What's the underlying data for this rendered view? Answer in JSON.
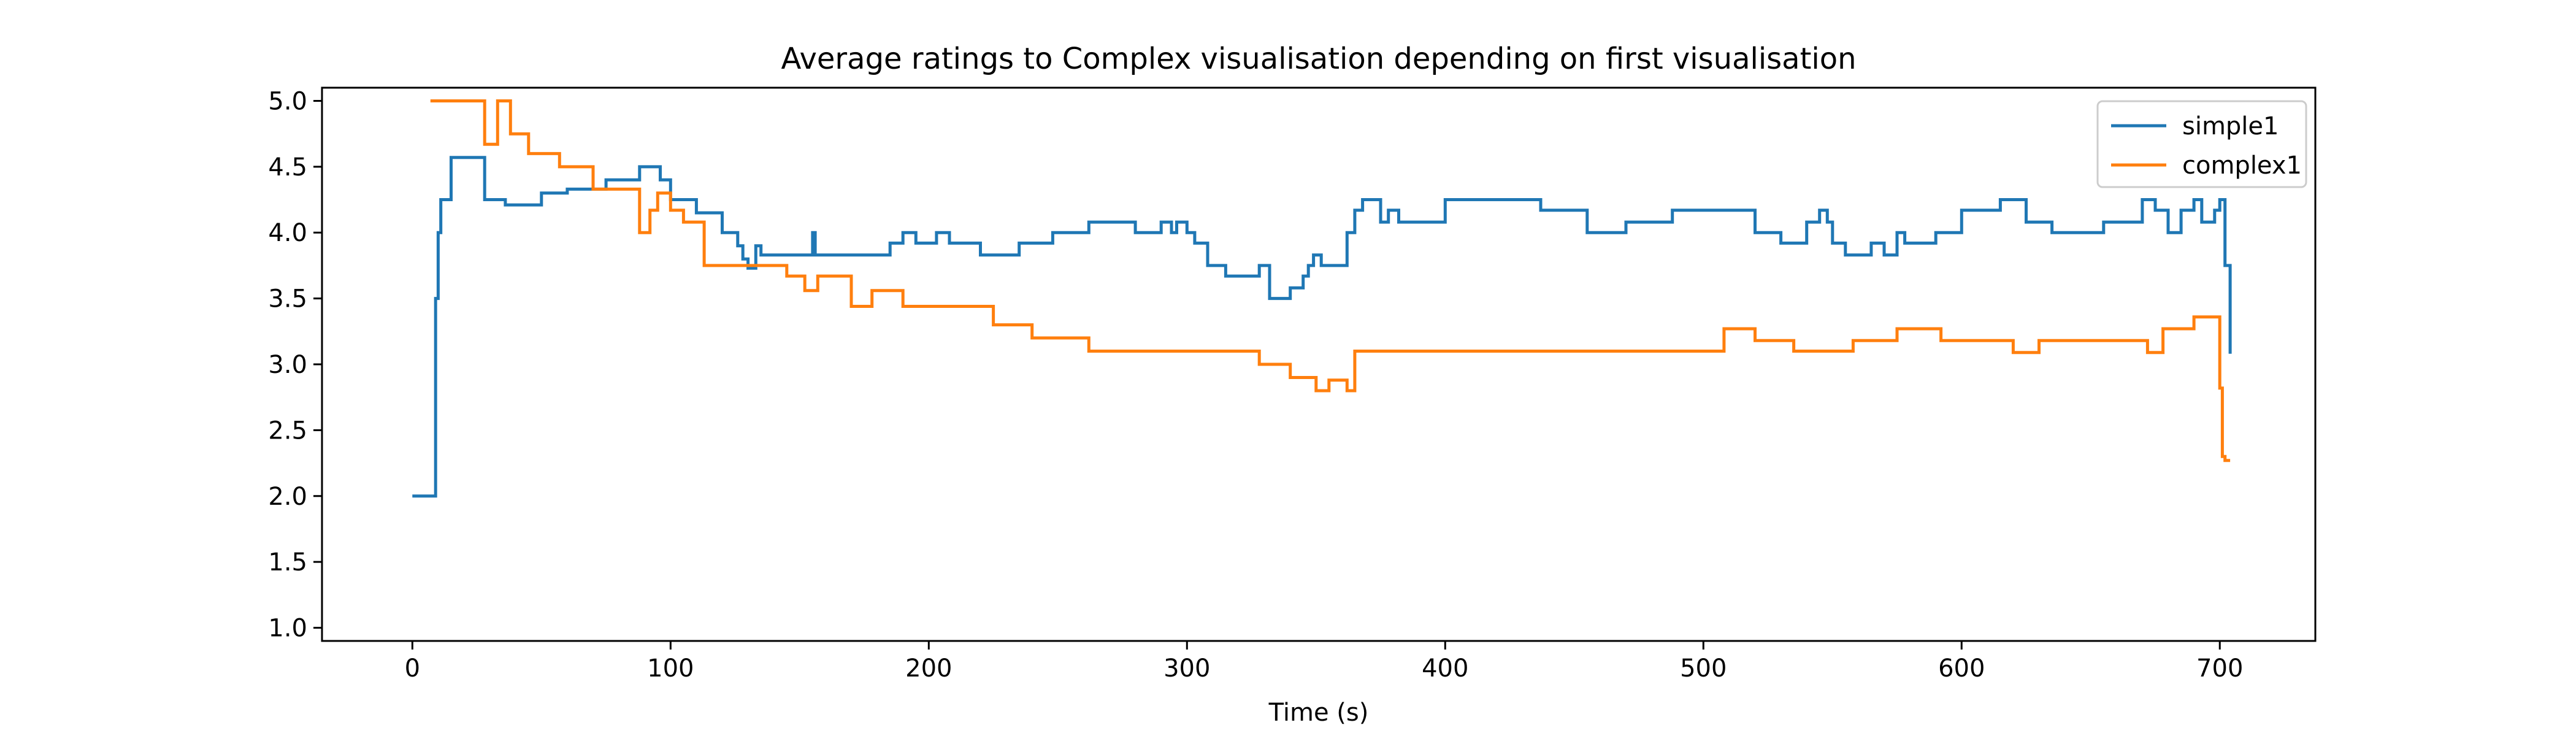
{
  "chart_data": {
    "type": "line",
    "title": "Average ratings to Complex visualisation depending on first visualisation",
    "xlabel": "Time (s)",
    "ylabel": "",
    "xlim": [
      -35,
      737
    ],
    "ylim": [
      0.9,
      5.1
    ],
    "x_ticks": [
      0,
      100,
      200,
      300,
      400,
      500,
      600,
      700
    ],
    "y_ticks": [
      1.0,
      1.5,
      2.0,
      2.5,
      3.0,
      3.5,
      4.0,
      4.5,
      5.0
    ],
    "grid": false,
    "legend_position": "top-right",
    "step": "post",
    "series": [
      {
        "name": "simple1",
        "color": "#1f77b4",
        "x": [
          0,
          9,
          10,
          11,
          12,
          15,
          20,
          28,
          36,
          50,
          60,
          75,
          88,
          96,
          100,
          110,
          120,
          126,
          128,
          130,
          133,
          135,
          155,
          156,
          158,
          170,
          182,
          185,
          190,
          195,
          200,
          203,
          208,
          220,
          235,
          248,
          262,
          270,
          280,
          290,
          294,
          296,
          300,
          303,
          308,
          315,
          325,
          328,
          332,
          336,
          340,
          345,
          347,
          349,
          352,
          360,
          362,
          365,
          368,
          375,
          378,
          382,
          385,
          400,
          420,
          437,
          455,
          470,
          488,
          510,
          520,
          530,
          540,
          545,
          548,
          550,
          555,
          565,
          570,
          575,
          578,
          590,
          600,
          615,
          625,
          635,
          655,
          670,
          675,
          680,
          685,
          690,
          693,
          698,
          700,
          702,
          704
        ],
        "values": [
          2.0,
          3.5,
          4.0,
          4.25,
          4.25,
          4.57,
          4.57,
          4.25,
          4.21,
          4.3,
          4.33,
          4.4,
          4.5,
          4.4,
          4.25,
          4.15,
          4.0,
          3.9,
          3.8,
          3.73,
          3.9,
          3.83,
          4.0,
          3.83,
          3.83,
          3.83,
          3.83,
          3.92,
          4.0,
          3.92,
          3.92,
          4.0,
          3.92,
          3.83,
          3.92,
          4.0,
          4.08,
          4.08,
          4.0,
          4.08,
          4.0,
          4.08,
          4.0,
          3.92,
          3.75,
          3.67,
          3.67,
          3.75,
          3.5,
          3.5,
          3.58,
          3.67,
          3.75,
          3.83,
          3.75,
          3.75,
          4.0,
          4.17,
          4.25,
          4.08,
          4.17,
          4.08,
          4.08,
          4.25,
          4.25,
          4.17,
          4.0,
          4.08,
          4.17,
          4.17,
          4.0,
          3.92,
          4.08,
          4.17,
          4.08,
          3.92,
          3.83,
          3.92,
          3.83,
          4.0,
          3.92,
          4.0,
          4.17,
          4.25,
          4.08,
          4.0,
          4.08,
          4.25,
          4.17,
          4.0,
          4.17,
          4.25,
          4.08,
          4.17,
          4.25,
          3.75,
          3.08
        ]
      },
      {
        "name": "complex1",
        "color": "#ff7f0e",
        "x": [
          7,
          28,
          33,
          38,
          45,
          57,
          70,
          86,
          88,
          92,
          95,
          100,
          105,
          113,
          145,
          152,
          157,
          170,
          178,
          190,
          220,
          225,
          240,
          262,
          300,
          328,
          340,
          350,
          355,
          362,
          365,
          500,
          508,
          520,
          535,
          558,
          575,
          592,
          615,
          620,
          630,
          652,
          672,
          678,
          690,
          695,
          700,
          701,
          702,
          704
        ],
        "values": [
          5.0,
          4.67,
          5.0,
          4.75,
          4.6,
          4.5,
          4.33,
          4.33,
          4.0,
          4.17,
          4.3,
          4.17,
          4.08,
          3.75,
          3.67,
          3.56,
          3.67,
          3.44,
          3.56,
          3.44,
          3.44,
          3.3,
          3.2,
          3.1,
          3.1,
          3.0,
          2.9,
          2.8,
          2.88,
          2.8,
          3.1,
          3.1,
          3.27,
          3.18,
          3.1,
          3.18,
          3.27,
          3.18,
          3.18,
          3.09,
          3.18,
          3.18,
          3.09,
          3.27,
          3.36,
          3.36,
          2.82,
          2.3,
          2.27,
          2.27
        ]
      }
    ]
  }
}
